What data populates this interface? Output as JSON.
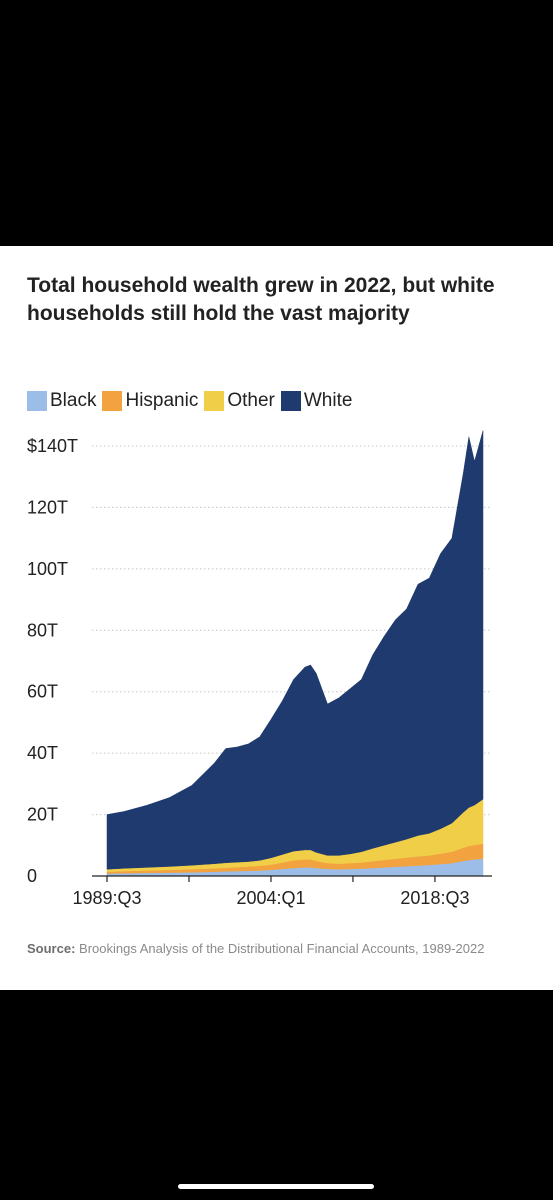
{
  "title": "Total household wealth grew in 2022, but white households still hold the vast majority",
  "source": {
    "label": "Source:",
    "text": "Brookings Analysis of the Distributional Financial Accounts, 1989-2022"
  },
  "chart_data": {
    "type": "area",
    "stacked": true,
    "title": "Total household wealth grew in 2022, but white households still hold the vast majority",
    "xlabel": "",
    "ylabel": "",
    "legend_position": "top-left",
    "grid": true,
    "x_start": "1989:Q3",
    "x_end": "2022:Q4",
    "x_ticks": [
      {
        "label": "1989:Q3",
        "year": 1989.5
      },
      {
        "label": "2004:Q1",
        "year": 2004.0
      },
      {
        "label": "2018:Q3",
        "year": 2018.5
      }
    ],
    "y_ticks": [
      {
        "value": 0,
        "label": "0"
      },
      {
        "value": 20,
        "label": "20T"
      },
      {
        "value": 40,
        "label": "40T"
      },
      {
        "value": 60,
        "label": "60T"
      },
      {
        "value": 80,
        "label": "80T"
      },
      {
        "value": 100,
        "label": "100T"
      },
      {
        "value": 120,
        "label": "120T"
      },
      {
        "value": 140,
        "label": "$140T"
      }
    ],
    "ylim": [
      0,
      140
    ],
    "unit": "trillion USD",
    "x": [
      1989.5,
      1991,
      1993,
      1995,
      1997,
      1999,
      2000,
      2001,
      2002,
      2003,
      2004,
      2005,
      2006,
      2007,
      2007.5,
      2008,
      2009,
      2010,
      2011,
      2012,
      2013,
      2014,
      2015,
      2016,
      2017,
      2018,
      2019,
      2020,
      2021,
      2021.5,
      2022,
      2022.75
    ],
    "series": [
      {
        "name": "Black",
        "color": "#9cbde8",
        "values": [
          0.8,
          0.9,
          1.0,
          1.1,
          1.2,
          1.4,
          1.5,
          1.6,
          1.7,
          1.8,
          2.0,
          2.3,
          2.6,
          2.8,
          2.8,
          2.6,
          2.3,
          2.2,
          2.3,
          2.4,
          2.6,
          2.8,
          3.0,
          3.2,
          3.4,
          3.6,
          3.9,
          4.2,
          4.9,
          5.2,
          5.4,
          5.6
        ]
      },
      {
        "name": "Hispanic",
        "color": "#f2a23e",
        "values": [
          0.6,
          0.7,
          0.8,
          0.9,
          1.0,
          1.1,
          1.2,
          1.3,
          1.4,
          1.5,
          1.7,
          2.1,
          2.5,
          2.6,
          2.6,
          2.3,
          1.9,
          1.8,
          1.9,
          2.0,
          2.2,
          2.4,
          2.6,
          2.8,
          3.0,
          3.1,
          3.4,
          3.7,
          4.3,
          4.6,
          4.7,
          4.9
        ]
      },
      {
        "name": "Other",
        "color": "#f0ce47",
        "values": [
          0.8,
          0.9,
          1.0,
          1.1,
          1.3,
          1.5,
          1.6,
          1.6,
          1.6,
          1.8,
          2.2,
          2.6,
          3.0,
          3.1,
          3.1,
          2.8,
          2.5,
          2.7,
          3.0,
          3.5,
          4.2,
          4.8,
          5.4,
          6.0,
          6.8,
          7.2,
          8.1,
          9.3,
          11.5,
          12.5,
          13.0,
          14.5
        ]
      },
      {
        "name": "White",
        "color": "#1e3a6e",
        "values": [
          17.8,
          18.5,
          20.2,
          22.4,
          26.0,
          32.8,
          37.2,
          37.5,
          38.3,
          40.2,
          45.1,
          50.0,
          55.9,
          59.5,
          60.2,
          58.3,
          49.3,
          51.3,
          53.8,
          56.1,
          63.0,
          68.0,
          72.4,
          75.0,
          81.8,
          83.1,
          89.6,
          92.8,
          110.3,
          120.7,
          111.9,
          120.0
        ]
      }
    ]
  }
}
